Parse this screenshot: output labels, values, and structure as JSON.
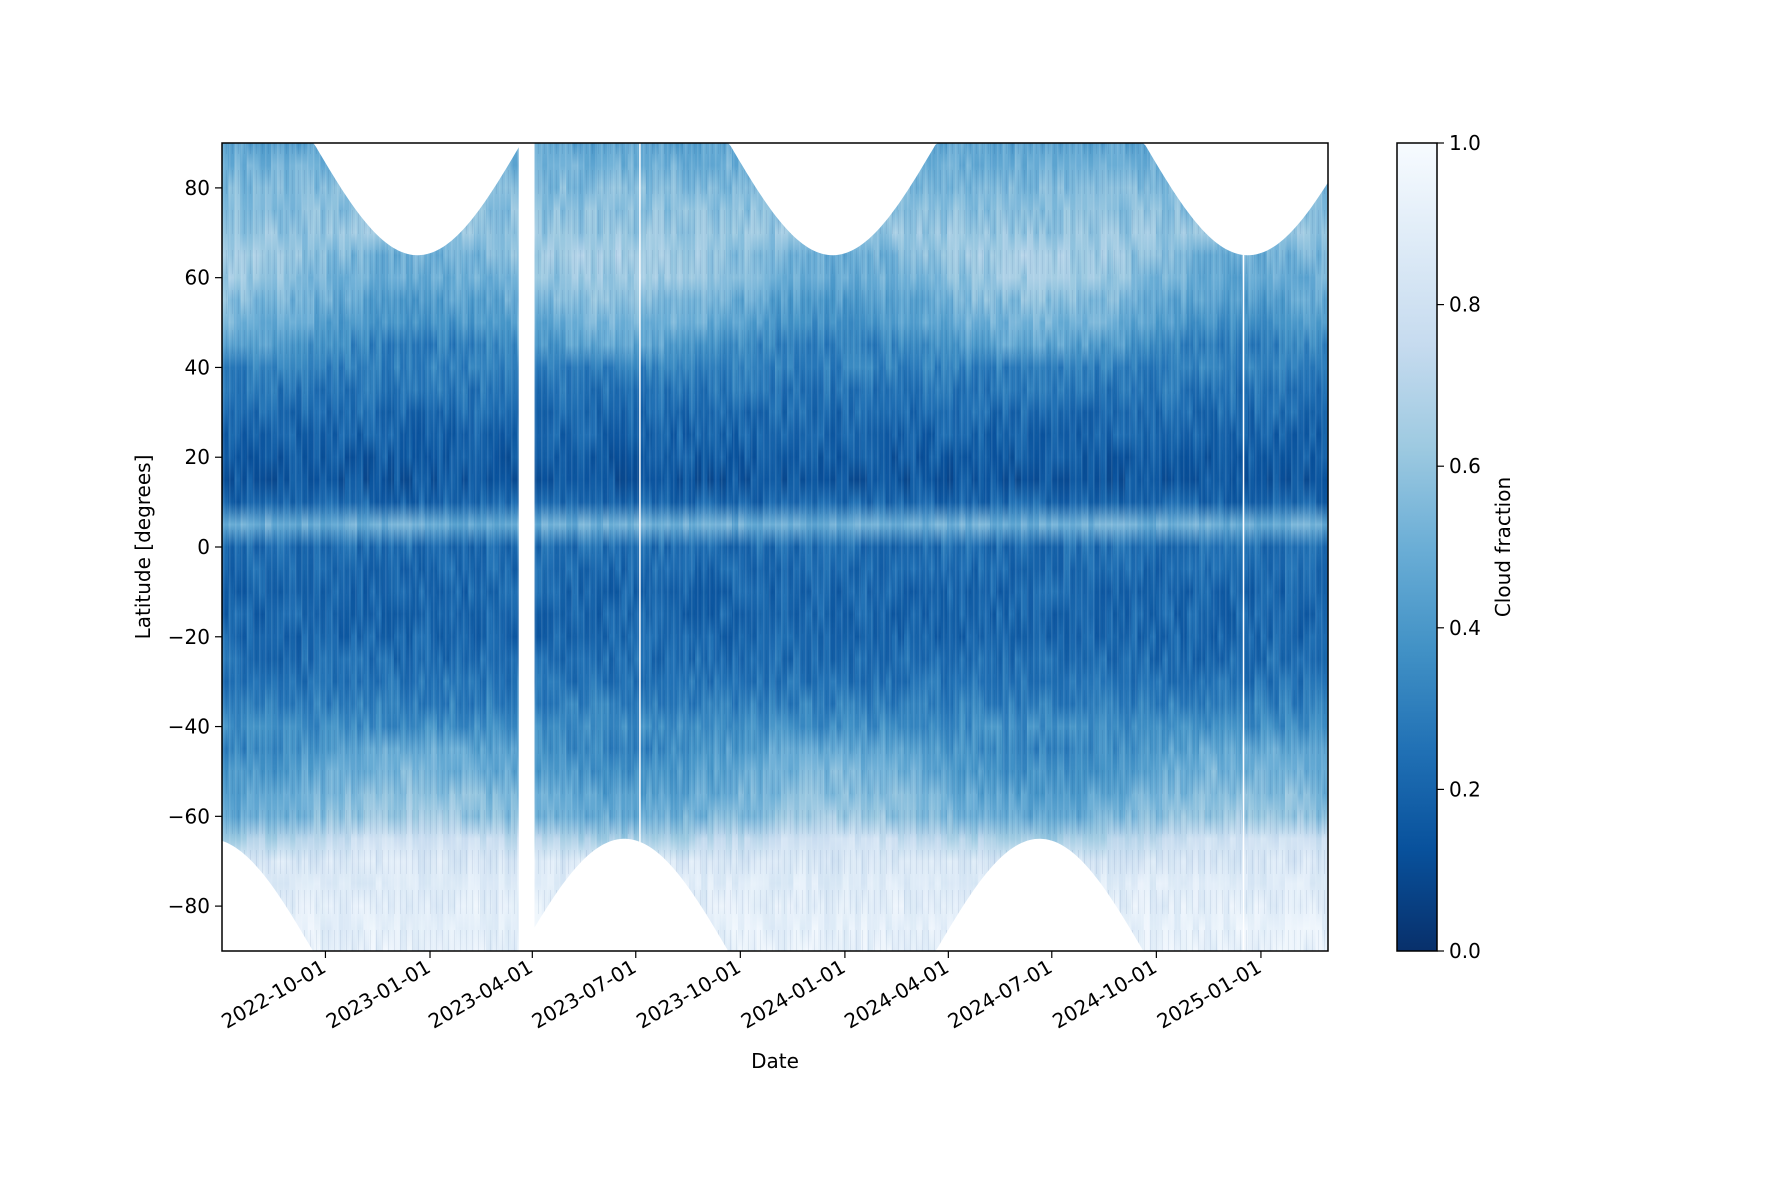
{
  "chart_data": {
    "type": "heatmap",
    "title": "",
    "xlabel": "Date",
    "ylabel": "Latitude [degrees]",
    "colorbar_label": "Cloud fraction",
    "colormap": "Blues_r",
    "color_range": [
      0.0,
      1.0
    ],
    "color_stops": [
      "#08306b",
      "#08519c",
      "#2171b5",
      "#4292c6",
      "#6baed6",
      "#9ecae1",
      "#c6dbef",
      "#deebf7",
      "#f7fbff"
    ],
    "xlim": [
      "2022-07-02",
      "2025-03-01"
    ],
    "ylim": [
      -90,
      90
    ],
    "x_ticks": [
      "2022-10-01",
      "2023-01-01",
      "2023-04-01",
      "2023-07-01",
      "2023-10-01",
      "2024-01-01",
      "2024-04-01",
      "2024-07-01",
      "2024-10-01",
      "2025-01-01"
    ],
    "y_ticks": [
      -80,
      -60,
      -40,
      -20,
      0,
      20,
      40,
      60,
      80
    ],
    "y_tick_labels": [
      "−80",
      "−60",
      "−40",
      "−20",
      "0",
      "20",
      "40",
      "60",
      "80"
    ],
    "colorbar_ticks": [
      0.0,
      0.2,
      0.4,
      0.6,
      0.8,
      1.0
    ],
    "colorbar_tick_labels": [
      "0.0",
      "0.2",
      "0.4",
      "0.6",
      "0.8",
      "1.0"
    ],
    "grid": false,
    "data_gaps": [
      {
        "start": "2023-03-20",
        "end": "2023-04-03"
      },
      {
        "start": "2023-07-04",
        "end": "2023-07-05"
      },
      {
        "start": "2024-12-16",
        "end": "2024-12-17"
      }
    ],
    "polar_night_extent": {
      "north_min_latitude": 65,
      "south_max_latitude": -65,
      "north_trough_dates": [
        "2022-12-21",
        "2023-12-21",
        "2024-12-21"
      ],
      "south_trough_dates": [
        "2023-06-21",
        "2024-06-21"
      ]
    },
    "latitude_profile": {
      "latitudes": [
        -90,
        -80,
        -70,
        -65,
        -60,
        -50,
        -40,
        -30,
        -20,
        -10,
        0,
        5,
        10,
        15,
        20,
        30,
        40,
        50,
        60,
        70,
        80,
        90
      ],
      "cloud_fraction": [
        0.92,
        0.9,
        0.85,
        0.72,
        0.55,
        0.45,
        0.35,
        0.25,
        0.2,
        0.2,
        0.23,
        0.5,
        0.2,
        0.14,
        0.16,
        0.22,
        0.3,
        0.45,
        0.55,
        0.6,
        0.55,
        0.45
      ]
    }
  }
}
